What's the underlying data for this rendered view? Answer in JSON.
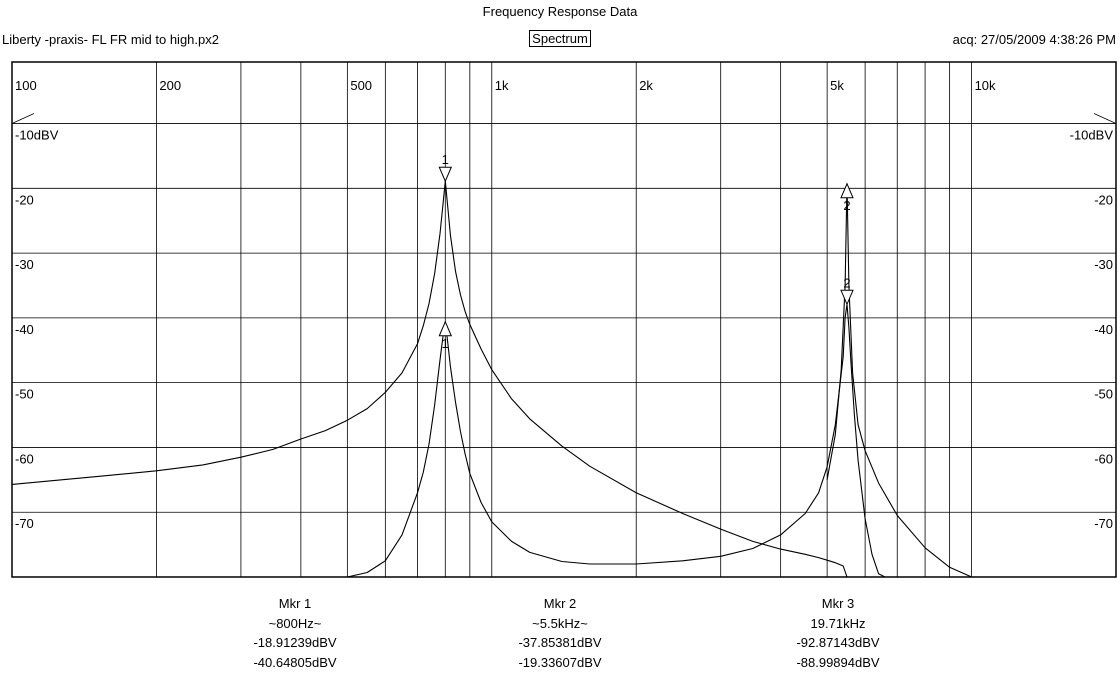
{
  "header": {
    "title": "Frequency Response Data",
    "file_name": "Liberty -praxis-  FL FR mid to high.px2",
    "view_mode": "Spectrum",
    "acquisition": "acq: 27/05/2009 4:38:26 PM"
  },
  "chart_data": {
    "type": "line",
    "xscale": "log",
    "xlim": [
      100,
      20000
    ],
    "ylim": [
      -80,
      -0.5
    ],
    "x_tick_labels": [
      {
        "value": 100,
        "label": "100"
      },
      {
        "value": 200,
        "label": "200"
      },
      {
        "value": 500,
        "label": "500"
      },
      {
        "value": 1000,
        "label": "1k"
      },
      {
        "value": 2000,
        "label": "2k"
      },
      {
        "value": 5000,
        "label": "5k"
      },
      {
        "value": 10000,
        "label": "10k"
      }
    ],
    "x_grid": [
      100,
      200,
      300,
      400,
      500,
      600,
      700,
      800,
      900,
      1000,
      2000,
      3000,
      4000,
      5000,
      6000,
      7000,
      8000,
      9000,
      10000
    ],
    "y_ticks": [
      {
        "value": -10,
        "label": "-10dBV"
      },
      {
        "value": -20,
        "label": "-20"
      },
      {
        "value": -30,
        "label": "-30"
      },
      {
        "value": -40,
        "label": "-40"
      },
      {
        "value": -50,
        "label": "-50"
      },
      {
        "value": -60,
        "label": "-60"
      },
      {
        "value": -70,
        "label": "-70"
      }
    ],
    "grid": true,
    "line_color": "#000000",
    "series": [
      {
        "x": [
          100,
          150,
          200,
          250,
          300,
          350,
          400,
          450,
          500,
          550,
          600,
          650,
          700,
          720,
          740,
          760,
          780,
          790,
          800,
          810,
          820,
          840,
          860,
          880,
          900,
          950,
          1000,
          1100,
          1200,
          1400,
          1600,
          2000,
          2500,
          3000,
          3500,
          4000,
          4500,
          4800,
          5000,
          5200,
          5400,
          5500
        ],
        "y": [
          -65.7,
          -64.5,
          -63.6,
          -62.7,
          -61.5,
          -60.3,
          -58.7,
          -57.4,
          -55.8,
          -54.0,
          -51.5,
          -48.5,
          -44.0,
          -41.2,
          -37.8,
          -33.2,
          -27.0,
          -22.9,
          -18.9,
          -23.1,
          -27.2,
          -32.8,
          -36.4,
          -39.0,
          -41.0,
          -44.8,
          -48.0,
          -52.5,
          -55.6,
          -59.8,
          -62.9,
          -67.0,
          -70.2,
          -72.6,
          -74.5,
          -75.7,
          -76.5,
          -77.0,
          -77.4,
          -77.8,
          -78.3,
          -80.0
        ]
      },
      {
        "x": [
          500,
          550,
          600,
          650,
          700,
          720,
          740,
          760,
          780,
          790,
          800,
          810,
          820,
          840,
          860,
          880,
          900,
          950,
          1000,
          1100,
          1200,
          1400,
          1600,
          2000,
          2500,
          3000,
          3500,
          4000,
          4500,
          4800,
          5000,
          5200,
          5400,
          5450,
          5500,
          5550,
          5600,
          5700,
          5800,
          6000,
          6200,
          6400,
          6600
        ],
        "y": [
          -80.0,
          -79.3,
          -77.5,
          -73.5,
          -67.0,
          -63.8,
          -59.5,
          -53.5,
          -46.5,
          -43.2,
          -40.6,
          -44.0,
          -47.5,
          -53.0,
          -57.5,
          -61.0,
          -64.0,
          -68.5,
          -71.5,
          -74.5,
          -76.2,
          -77.6,
          -78.0,
          -78.0,
          -77.5,
          -76.8,
          -75.6,
          -73.5,
          -70.2,
          -67.0,
          -63.0,
          -56.5,
          -46.0,
          -40.0,
          -37.9,
          -41.5,
          -46.5,
          -55.0,
          -62.0,
          -71.0,
          -76.5,
          -79.5,
          -80.0
        ]
      },
      {
        "x": [
          5000,
          5200,
          5350,
          5450,
          5500,
          5550,
          5650,
          5800,
          6000,
          6400,
          7000,
          8000,
          9000,
          10000
        ],
        "y": [
          -65.0,
          -58.0,
          -48.0,
          -35.0,
          -19.3,
          -35.0,
          -48.5,
          -56.5,
          -60.5,
          -65.5,
          -70.5,
          -75.5,
          -78.5,
          -80.0
        ]
      }
    ],
    "markers": [
      {
        "label": "1",
        "x": 800,
        "y": -18.9,
        "shape": "down"
      },
      {
        "label": "1",
        "x": 800,
        "y": -40.6,
        "shape": "up"
      },
      {
        "label": "2",
        "x": 5500,
        "y": -19.3,
        "shape": "up"
      },
      {
        "label": "2",
        "x": 5500,
        "y": -37.9,
        "shape": "down"
      }
    ]
  },
  "markers_table": [
    {
      "name": "Mkr 1",
      "frequency": "~800Hz~",
      "value_1": "-18.91239dBV",
      "value_2": "-40.64805dBV"
    },
    {
      "name": "Mkr 2",
      "frequency": "~5.5kHz~",
      "value_1": "-37.85381dBV",
      "value_2": "-19.33607dBV"
    },
    {
      "name": "Mkr 3",
      "frequency": "19.71kHz",
      "value_1": "-92.87143dBV",
      "value_2": "-88.99894dBV"
    }
  ]
}
